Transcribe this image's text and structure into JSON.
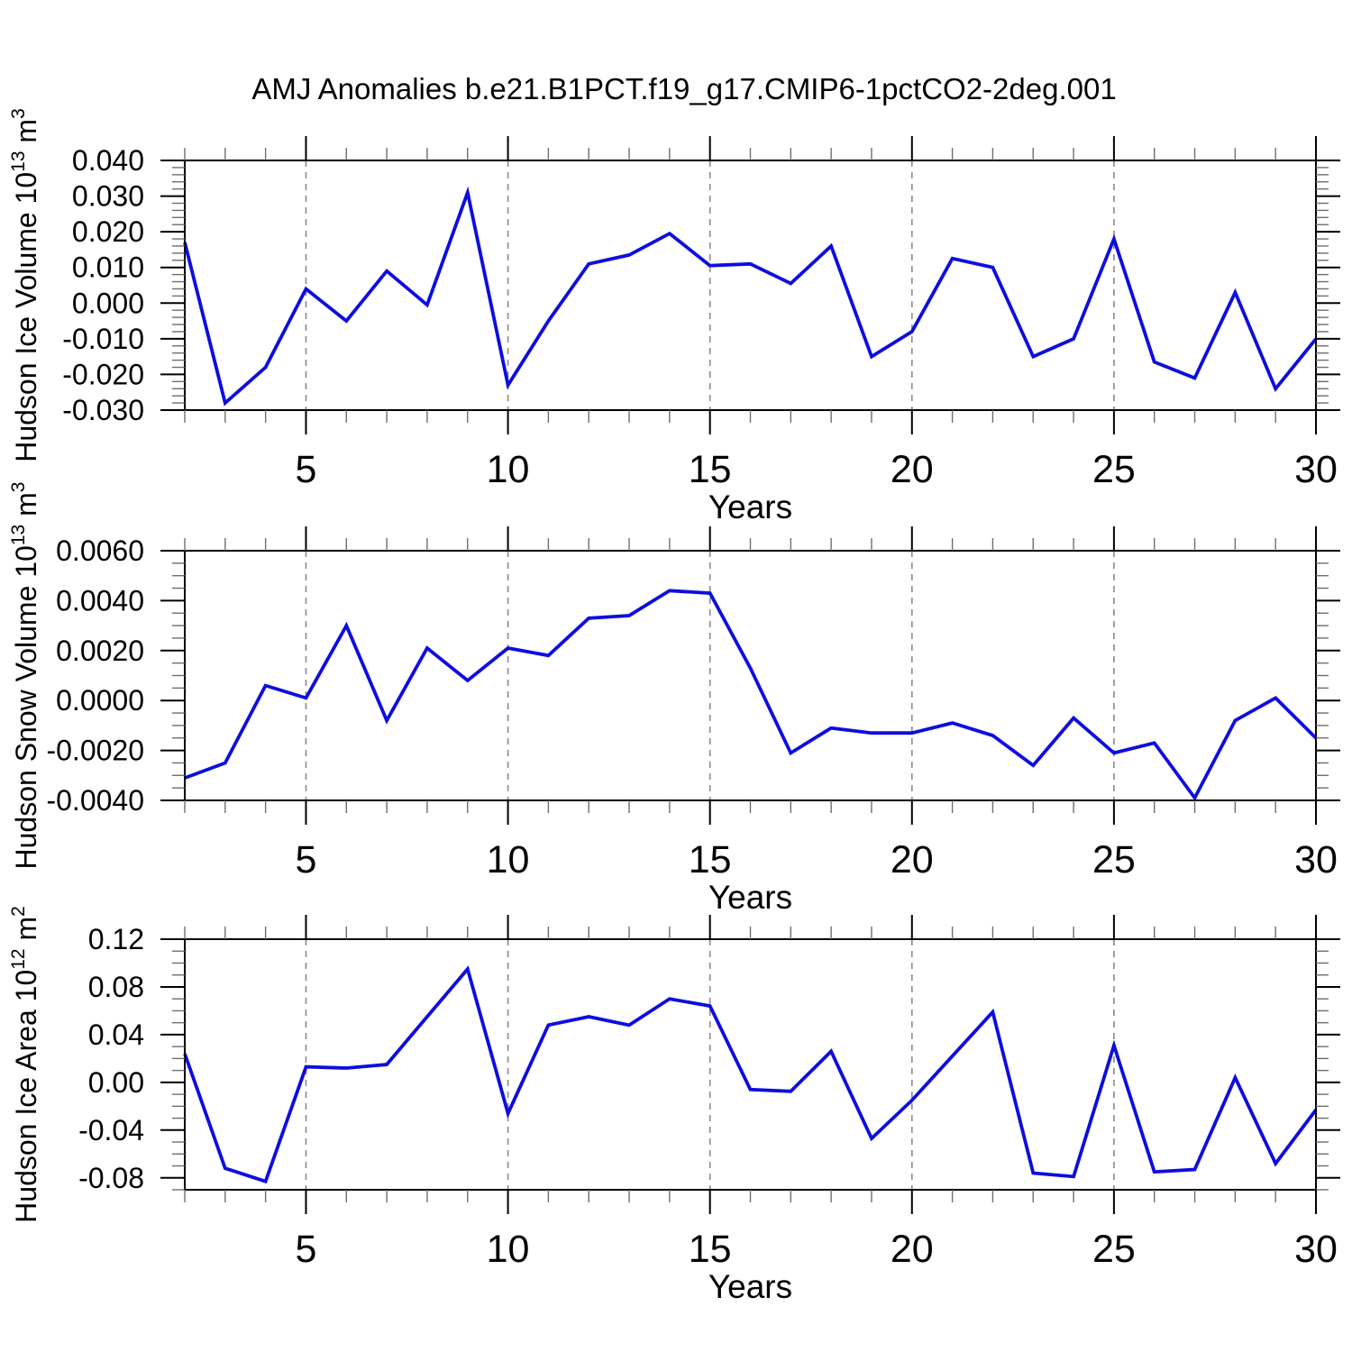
{
  "title": "AMJ Anomalies b.e21.B1PCT.f19_g17.CMIP6-1pctCO2-2deg.001",
  "styles": {
    "line_color": "#0d0de0",
    "grid_color": "#8f8f8f",
    "axis_color": "#000000",
    "background": "#ffffff"
  },
  "chart_data": [
    {
      "type": "line",
      "id": "hudson-ice-volume",
      "ylabel_plain": "Hudson Ice Volume 10^13 m^3",
      "ylabel_parts": [
        {
          "text": "Hudson Ice Volume 10",
          "sup": false
        },
        {
          "text": "13",
          "sup": true
        },
        {
          "text": " m",
          "sup": false
        },
        {
          "text": "3",
          "sup": true
        }
      ],
      "xlabel": "Years",
      "x": [
        2,
        3,
        4,
        5,
        6,
        7,
        8,
        9,
        10,
        11,
        12,
        13,
        14,
        15,
        16,
        17,
        18,
        19,
        20,
        21,
        22,
        23,
        24,
        25,
        26,
        27,
        28,
        29,
        30
      ],
      "values": [
        0.017,
        -0.028,
        -0.018,
        0.004,
        -0.005,
        0.009,
        -0.0005,
        0.031,
        -0.023,
        -0.005,
        0.011,
        0.0135,
        0.0195,
        0.0105,
        0.011,
        0.0055,
        0.016,
        -0.015,
        -0.008,
        0.0125,
        0.01,
        -0.015,
        -0.01,
        0.018,
        -0.0165,
        -0.021,
        0.003,
        -0.024,
        -0.01
      ],
      "xlim": [
        2,
        30
      ],
      "ylim": [
        -0.03,
        0.04
      ],
      "xtick_labels": [
        "5",
        "10",
        "15",
        "20",
        "25",
        "30"
      ],
      "xminor_step": 1,
      "ytick_labels": [
        "0.040",
        "0.030",
        "0.020",
        "0.010",
        "0.000",
        "-0.010",
        "-0.020",
        "-0.030"
      ],
      "ytick_step": 0.01,
      "yminor_step": 0.002,
      "gridlines_x": [
        5,
        10,
        15,
        20,
        25
      ],
      "grid_on": true,
      "legend": "none"
    },
    {
      "type": "line",
      "id": "hudson-snow-volume",
      "ylabel_plain": "Hudson Snow Volume 10^13 m^3",
      "ylabel_parts": [
        {
          "text": "Hudson Snow Volume 10",
          "sup": false
        },
        {
          "text": "13",
          "sup": true
        },
        {
          "text": " m",
          "sup": false
        },
        {
          "text": "3",
          "sup": true
        }
      ],
      "xlabel": "Years",
      "x": [
        2,
        3,
        4,
        5,
        6,
        7,
        8,
        9,
        10,
        11,
        12,
        13,
        14,
        15,
        16,
        17,
        18,
        19,
        20,
        21,
        22,
        23,
        24,
        25,
        26,
        27,
        28,
        29,
        30
      ],
      "values": [
        -0.0031,
        -0.0025,
        0.0006,
        0.0001,
        0.003,
        -0.0008,
        0.0021,
        0.0008,
        0.0021,
        0.0018,
        0.0033,
        0.0034,
        0.0044,
        0.0043,
        0.0013,
        -0.0021,
        -0.0011,
        -0.0013,
        -0.0013,
        -0.0009,
        -0.0014,
        -0.0026,
        -0.0007,
        -0.0021,
        -0.0017,
        -0.0039,
        -0.0008,
        0.0001,
        -0.0015
      ],
      "xlim": [
        2,
        30
      ],
      "ylim": [
        -0.004,
        0.006
      ],
      "xtick_labels": [
        "5",
        "10",
        "15",
        "20",
        "25",
        "30"
      ],
      "xminor_step": 1,
      "ytick_labels": [
        "0.0060",
        "0.0040",
        "0.0020",
        "0.0000",
        "-0.0020",
        "-0.0040"
      ],
      "ytick_step": 0.002,
      "yminor_step": 0.0005,
      "gridlines_x": [
        5,
        10,
        15,
        20,
        25
      ],
      "grid_on": true,
      "legend": "none"
    },
    {
      "type": "line",
      "id": "hudson-ice-area",
      "ylabel_plain": "Hudson Ice Area 10^12 m^2",
      "ylabel_parts": [
        {
          "text": "Hudson Ice Area 10",
          "sup": false
        },
        {
          "text": "12",
          "sup": true
        },
        {
          "text": " m",
          "sup": false
        },
        {
          "text": "2",
          "sup": true
        }
      ],
      "xlabel": "Years",
      "x": [
        2,
        3,
        4,
        5,
        6,
        7,
        8,
        9,
        10,
        11,
        12,
        13,
        14,
        15,
        16,
        17,
        18,
        19,
        20,
        21,
        22,
        23,
        24,
        25,
        26,
        27,
        28,
        29,
        30
      ],
      "values": [
        0.024,
        -0.072,
        -0.083,
        0.013,
        0.012,
        0.015,
        0.055,
        0.095,
        -0.026,
        0.048,
        0.055,
        0.048,
        0.07,
        0.064,
        -0.006,
        -0.0075,
        0.026,
        -0.047,
        -0.015,
        0.022,
        0.059,
        -0.076,
        -0.079,
        0.031,
        -0.075,
        -0.073,
        0.004,
        -0.068,
        -0.023
      ],
      "xlim": [
        2,
        30
      ],
      "ylim": [
        -0.09,
        0.12
      ],
      "xtick_labels": [
        "5",
        "10",
        "15",
        "20",
        "25",
        "30"
      ],
      "xminor_step": 1,
      "ytick_labels": [
        "0.12",
        "0.08",
        "0.04",
        "0.00",
        "-0.04",
        "-0.08"
      ],
      "ytick_step": 0.04,
      "yminor_step": 0.01,
      "gridlines_x": [
        5,
        10,
        15,
        20,
        25
      ],
      "grid_on": true,
      "legend": "none"
    }
  ]
}
